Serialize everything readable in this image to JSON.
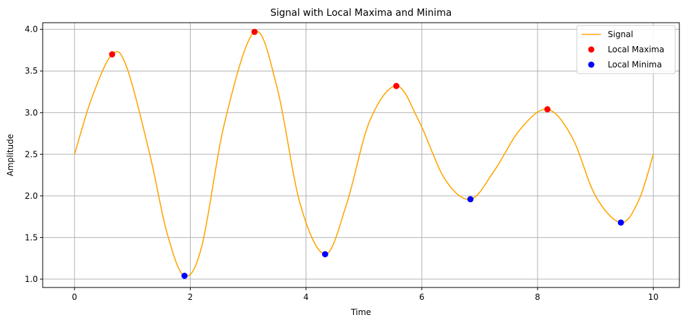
{
  "chart_data": {
    "type": "line",
    "title": "Signal with Local Maxima and Minima",
    "xlabel": "Time",
    "ylabel": "Amplitude",
    "xlim": [
      -0.55,
      10.45
    ],
    "ylim": [
      0.9,
      4.08
    ],
    "xticks": [
      0,
      2,
      4,
      6,
      8,
      10
    ],
    "xtick_labels": [
      "0",
      "2",
      "4",
      "6",
      "8",
      "10"
    ],
    "yticks": [
      1.0,
      1.5,
      2.0,
      2.5,
      3.0,
      3.5,
      4.0
    ],
    "ytick_labels": [
      "1.0",
      "1.5",
      "2.0",
      "2.5",
      "3.0",
      "3.5",
      "4.0"
    ],
    "grid": true,
    "legend_position": "top-right",
    "series": [
      {
        "name": "Signal",
        "style": "line",
        "color": "#ffa500",
        "x": [
          0,
          0.3,
          0.65,
          0.9,
          1.3,
          1.6,
          1.9,
          2.2,
          2.6,
          3.11,
          3.5,
          3.9,
          4.33,
          4.7,
          5.1,
          5.56,
          5.95,
          6.4,
          6.84,
          7.25,
          7.7,
          8.17,
          8.6,
          9.0,
          9.44,
          9.75,
          10.0
        ],
        "y": [
          2.5,
          3.18,
          3.7,
          3.55,
          2.5,
          1.55,
          1.04,
          1.4,
          2.9,
          3.97,
          3.3,
          1.9,
          1.3,
          1.9,
          2.9,
          3.32,
          2.9,
          2.2,
          1.96,
          2.3,
          2.8,
          3.04,
          2.7,
          2.0,
          1.68,
          1.95,
          2.5
        ]
      },
      {
        "name": "Local Maxima",
        "style": "marker",
        "color": "#ff0000",
        "x": [
          0.65,
          3.11,
          5.56,
          8.17
        ],
        "y": [
          3.7,
          3.97,
          3.32,
          3.04
        ]
      },
      {
        "name": "Local Minima",
        "style": "marker",
        "color": "#0000ff",
        "x": [
          1.9,
          4.33,
          6.84,
          9.44
        ],
        "y": [
          1.04,
          1.3,
          1.96,
          1.68
        ]
      }
    ]
  }
}
